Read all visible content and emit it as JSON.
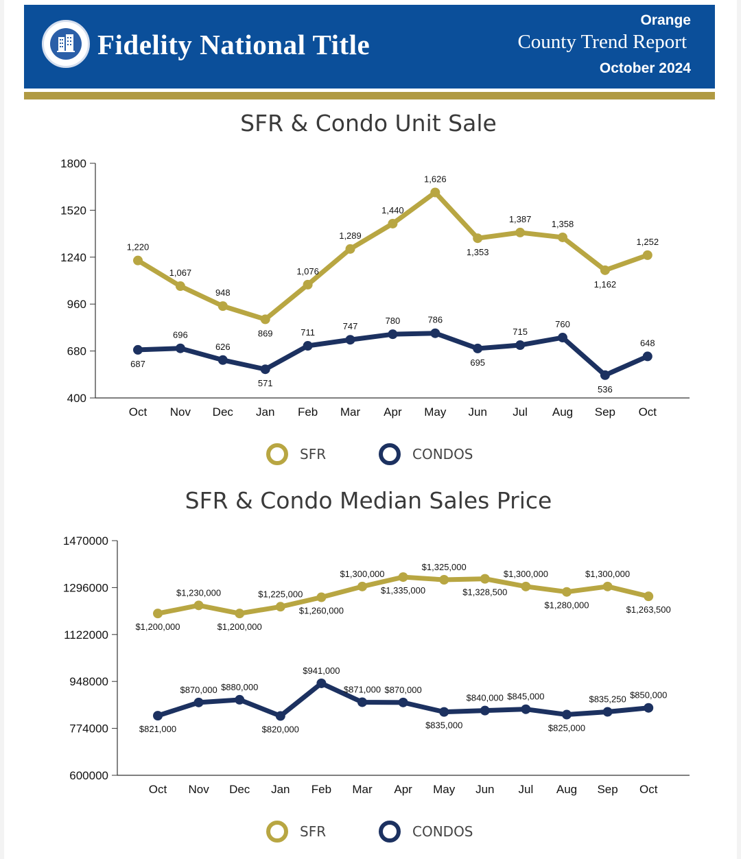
{
  "header": {
    "brand": "Fidelity National Title",
    "county": "Orange",
    "report_title": "County Trend Report",
    "date": "October 2024",
    "logo_icon": "building-seal-icon"
  },
  "colors": {
    "header_bg": "#0b4f9a",
    "gold": "#b8a642",
    "navy": "#1c3160"
  },
  "chart_data": [
    {
      "type": "line",
      "title": "SFR & Condo Unit Sale",
      "categories": [
        "Oct",
        "Nov",
        "Dec",
        "Jan",
        "Feb",
        "Mar",
        "Apr",
        "May",
        "Jun",
        "Jul",
        "Aug",
        "Sep",
        "Oct"
      ],
      "ylim": [
        400,
        1800
      ],
      "yticks": [
        "1800",
        "1520",
        "1240",
        "960",
        "680",
        "400"
      ],
      "ytick_values": [
        1800,
        1520,
        1240,
        960,
        680,
        400
      ],
      "legend_position": "bottom",
      "series": [
        {
          "name": "SFR",
          "color": "#b8a642",
          "values": [
            1220,
            1067,
            948,
            869,
            1076,
            1289,
            1440,
            1626,
            1353,
            1387,
            1358,
            1162,
            1252
          ],
          "labels": [
            "1,220",
            "1,067",
            "948",
            "869",
            "1,076",
            "1,289",
            "1,440",
            "1,626",
            "1,353",
            "1,387",
            "1,358",
            "1,162",
            "1,252"
          ],
          "label_side": [
            "above",
            "above",
            "above",
            "below",
            "above",
            "above",
            "above",
            "above",
            "below",
            "above",
            "above",
            "below",
            "above"
          ]
        },
        {
          "name": "CONDOS",
          "color": "#1c3160",
          "values": [
            687,
            696,
            626,
            571,
            711,
            747,
            780,
            786,
            695,
            715,
            760,
            536,
            648
          ],
          "labels": [
            "687",
            "696",
            "626",
            "571",
            "711",
            "747",
            "780",
            "786",
            "695",
            "715",
            "760",
            "536",
            "648"
          ],
          "label_side": [
            "below",
            "above",
            "above",
            "below",
            "above",
            "above",
            "above",
            "above",
            "below",
            "above",
            "above",
            "below",
            "above"
          ]
        }
      ]
    },
    {
      "type": "line",
      "title": "SFR & Condo Median Sales Price",
      "categories": [
        "Oct",
        "Nov",
        "Dec",
        "Jan",
        "Feb",
        "Mar",
        "Apr",
        "May",
        "Jun",
        "Jul",
        "Aug",
        "Sep",
        "Oct"
      ],
      "ylim": [
        600000,
        1470000
      ],
      "yticks": [
        "1470000",
        "1296000",
        "1122000",
        "948000",
        "774000",
        "600000"
      ],
      "ytick_values": [
        1470000,
        1296000,
        1122000,
        948000,
        774000,
        600000
      ],
      "legend_position": "bottom",
      "series": [
        {
          "name": "SFR",
          "color": "#b8a642",
          "values": [
            1200000,
            1230000,
            1200000,
            1225000,
            1260000,
            1300000,
            1335000,
            1325000,
            1328500,
            1300000,
            1280000,
            1300000,
            1263500
          ],
          "labels": [
            "$1,200,000",
            "$1,230,000",
            "$1,200,000",
            "$1,225,000",
            "$1,260,000",
            "$1,300,000",
            "$1,335,000",
            "$1,325,000",
            "$1,328,500",
            "$1,300,000",
            "$1,280,000",
            "$1,300,000",
            "$1,263,500"
          ],
          "label_side": [
            "below",
            "above",
            "below",
            "above",
            "below",
            "above",
            "below",
            "above",
            "below",
            "above",
            "below",
            "above",
            "below"
          ]
        },
        {
          "name": "CONDOS",
          "color": "#1c3160",
          "values": [
            821000,
            870000,
            880000,
            820000,
            941000,
            871000,
            870000,
            835000,
            840000,
            845000,
            825000,
            835250,
            850000
          ],
          "labels": [
            "$821,000",
            "$870,000",
            "$880,000",
            "$820,000",
            "$941,000",
            "$871,000",
            "$870,000",
            "$835,000",
            "$840,000",
            "$845,000",
            "$825,000",
            "$835,250",
            "$850,000"
          ],
          "label_side": [
            "below",
            "above",
            "above",
            "below",
            "above",
            "above",
            "above",
            "below",
            "above",
            "above",
            "below",
            "above",
            "above"
          ]
        }
      ]
    }
  ]
}
